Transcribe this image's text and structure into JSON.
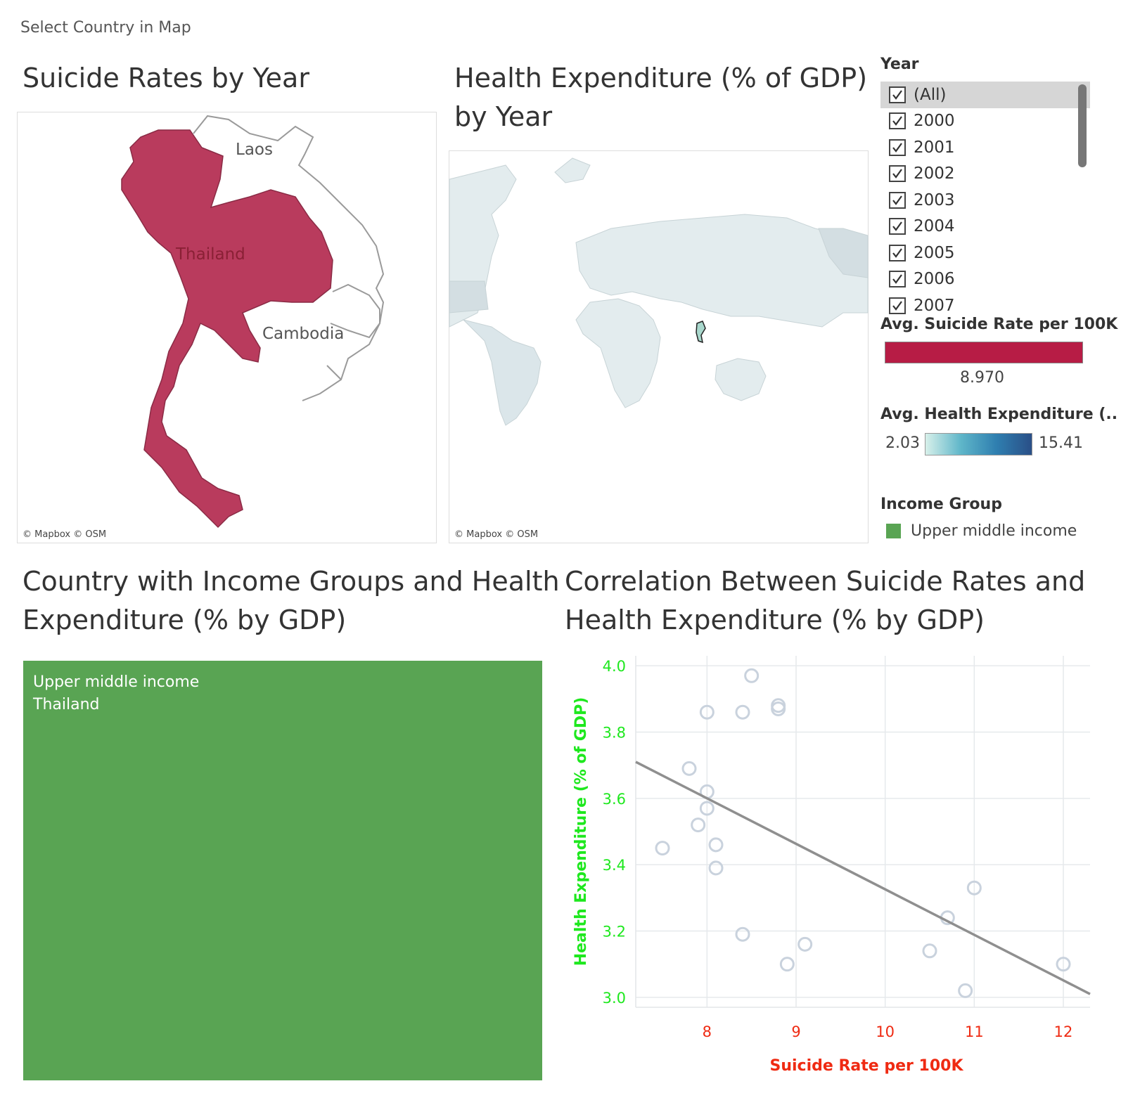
{
  "header": {
    "note": "Select Country in Map"
  },
  "suicide_map": {
    "title": "Suicide Rates by Year",
    "labels": {
      "laos": "Laos",
      "thailand": "Thailand",
      "cambodia": "Cambodia"
    },
    "attribution": "© Mapbox © OSM",
    "fill_color": "#b93b5d"
  },
  "health_map": {
    "title_line1": "Health Expenditure (% of GDP)",
    "title_line2": "by Year",
    "attribution": "© Mapbox © OSM"
  },
  "year_filter": {
    "title": "Year",
    "items": [
      {
        "label": "(All)",
        "checked": true,
        "selected": true
      },
      {
        "label": "2000",
        "checked": true
      },
      {
        "label": "2001",
        "checked": true
      },
      {
        "label": "2002",
        "checked": true
      },
      {
        "label": "2003",
        "checked": true
      },
      {
        "label": "2004",
        "checked": true
      },
      {
        "label": "2005",
        "checked": true
      },
      {
        "label": "2006",
        "checked": true
      },
      {
        "label": "2007",
        "checked": true
      }
    ]
  },
  "legend_suicide": {
    "title": "Avg. Suicide Rate per 100K",
    "value": "8.970",
    "color": "#b71c45"
  },
  "legend_health": {
    "title": "Avg. Health Expenditure (..",
    "min": "2.03",
    "max": "15.41"
  },
  "legend_income": {
    "title": "Income Group",
    "item": "Upper middle income",
    "color": "#59a453"
  },
  "treemap": {
    "title_line1": "Country with Income Groups and Health",
    "title_line2": "Expenditure (% by GDP)",
    "label_line1": "Upper middle income",
    "label_line2": "Thailand",
    "color": "#59a453"
  },
  "scatter": {
    "title_line1": "Correlation Between Suicide Rates and",
    "title_line2": "Health Expenditure (% by GDP)"
  },
  "chart_data": {
    "type": "scatter",
    "title": "Correlation Between Suicide Rates and Health Expenditure (% by GDP)",
    "xlabel": "Suicide Rate per 100K",
    "ylabel": "Health Expenditure (% of GDP)",
    "xlim": [
      7.2,
      12.3
    ],
    "ylim": [
      2.97,
      4.03
    ],
    "x_ticks": [
      8,
      9,
      10,
      11,
      12
    ],
    "y_ticks": [
      "3.0",
      "3.2",
      "3.4",
      "3.6",
      "3.8",
      "4.0"
    ],
    "grid": true,
    "points": [
      {
        "x": 8.5,
        "y": 3.97
      },
      {
        "x": 8.0,
        "y": 3.86
      },
      {
        "x": 8.4,
        "y": 3.86
      },
      {
        "x": 8.8,
        "y": 3.88
      },
      {
        "x": 8.8,
        "y": 3.87
      },
      {
        "x": 7.8,
        "y": 3.69
      },
      {
        "x": 8.0,
        "y": 3.62
      },
      {
        "x": 8.0,
        "y": 3.57
      },
      {
        "x": 7.9,
        "y": 3.52
      },
      {
        "x": 7.5,
        "y": 3.45
      },
      {
        "x": 8.1,
        "y": 3.46
      },
      {
        "x": 8.1,
        "y": 3.39
      },
      {
        "x": 11.0,
        "y": 3.33
      },
      {
        "x": 10.7,
        "y": 3.24
      },
      {
        "x": 8.4,
        "y": 3.19
      },
      {
        "x": 9.1,
        "y": 3.16
      },
      {
        "x": 10.5,
        "y": 3.14
      },
      {
        "x": 8.9,
        "y": 3.1
      },
      {
        "x": 12.0,
        "y": 3.1
      },
      {
        "x": 10.9,
        "y": 3.02
      }
    ],
    "trend_line": {
      "x": [
        7.2,
        12.3
      ],
      "y": [
        3.71,
        3.01
      ]
    },
    "colors": {
      "points": "#c9d2dd",
      "trend": "#8f8f8f",
      "x_axis": "#ef2a12",
      "y_axis": "#1ee81e"
    }
  }
}
